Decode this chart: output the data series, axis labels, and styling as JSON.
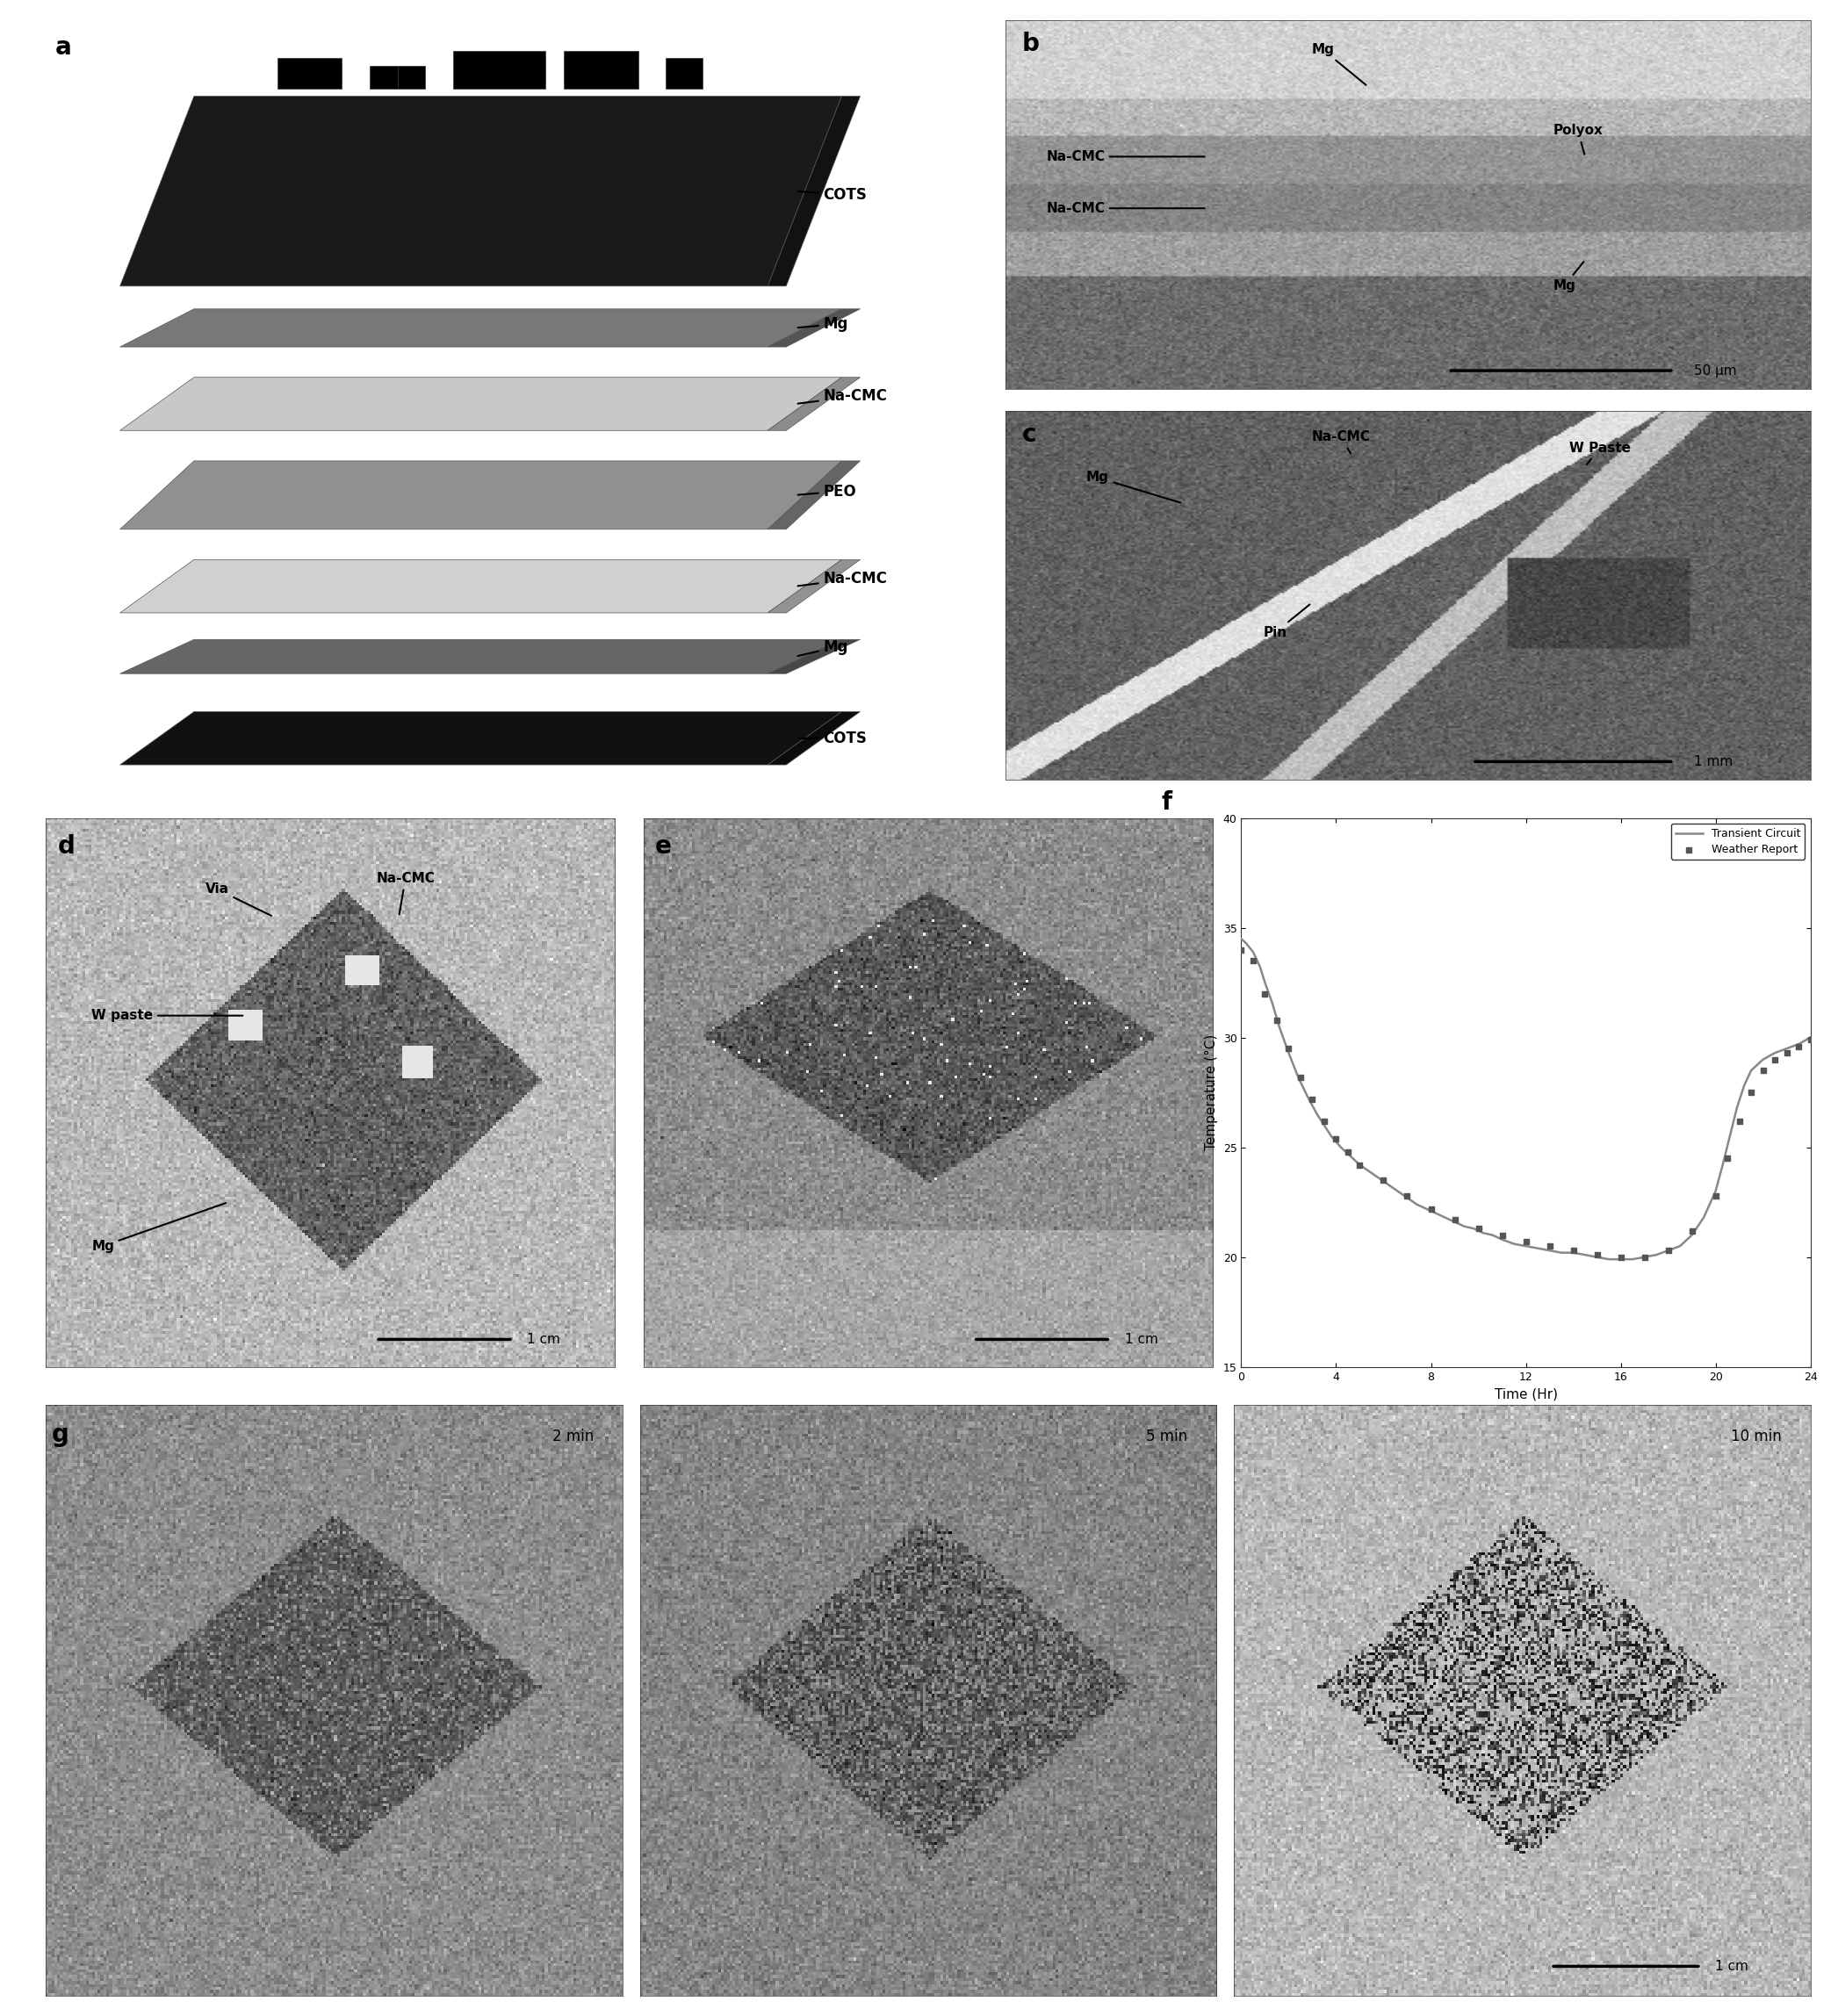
{
  "figure_bg": "#ffffff",
  "panel_labels": [
    "a",
    "b",
    "c",
    "d",
    "e",
    "f",
    "g"
  ],
  "panel_label_fontsize": 20,
  "panel_label_weight": "bold",
  "panel_f": {
    "xlabel": "Time (Hr)",
    "ylabel": "Temperature (°C)",
    "xlim": [
      0,
      24
    ],
    "ylim": [
      15,
      40
    ],
    "xticks": [
      0,
      4,
      8,
      12,
      16,
      20,
      24
    ],
    "yticks": [
      15,
      20,
      25,
      30,
      35,
      40
    ],
    "legend_line": "Transient Circuit",
    "legend_scatter": "Weather Report",
    "bg": "#ffffff",
    "transient_x": [
      0.0,
      0.2,
      0.5,
      0.8,
      1.0,
      1.3,
      1.6,
      2.0,
      2.4,
      2.8,
      3.2,
      3.5,
      3.8,
      4.2,
      4.6,
      5.0,
      5.4,
      5.8,
      6.2,
      6.6,
      7.0,
      7.4,
      7.8,
      8.2,
      8.6,
      9.0,
      9.4,
      9.8,
      10.2,
      10.6,
      11.0,
      11.5,
      12.0,
      12.5,
      13.0,
      13.5,
      14.0,
      14.5,
      15.0,
      15.5,
      16.0,
      16.5,
      17.0,
      17.5,
      18.0,
      18.5,
      19.0,
      19.5,
      20.0,
      20.3,
      20.6,
      20.9,
      21.2,
      21.5,
      22.0,
      22.5,
      23.0,
      23.5,
      24.0
    ],
    "transient_y": [
      34.5,
      34.3,
      33.9,
      33.2,
      32.5,
      31.6,
      30.5,
      29.3,
      28.2,
      27.3,
      26.5,
      26.0,
      25.5,
      25.0,
      24.6,
      24.2,
      23.9,
      23.6,
      23.3,
      23.0,
      22.7,
      22.4,
      22.2,
      22.0,
      21.8,
      21.6,
      21.4,
      21.3,
      21.1,
      21.0,
      20.8,
      20.6,
      20.5,
      20.4,
      20.3,
      20.2,
      20.2,
      20.1,
      20.0,
      19.9,
      19.9,
      19.9,
      20.0,
      20.1,
      20.3,
      20.5,
      21.0,
      21.8,
      23.0,
      24.2,
      25.5,
      26.8,
      27.8,
      28.5,
      29.0,
      29.3,
      29.5,
      29.7,
      30.0
    ],
    "weather_x": [
      0.0,
      0.5,
      1.0,
      1.5,
      2.0,
      2.5,
      3.0,
      3.5,
      4.0,
      4.5,
      5.0,
      6.0,
      7.0,
      8.0,
      9.0,
      10.0,
      11.0,
      12.0,
      13.0,
      14.0,
      15.0,
      16.0,
      17.0,
      18.0,
      19.0,
      20.0,
      20.5,
      21.0,
      21.5,
      22.0,
      22.5,
      23.0,
      23.5,
      24.0
    ],
    "weather_y": [
      34.0,
      33.5,
      32.0,
      30.8,
      29.5,
      28.2,
      27.2,
      26.2,
      25.4,
      24.8,
      24.2,
      23.5,
      22.8,
      22.2,
      21.7,
      21.3,
      21.0,
      20.7,
      20.5,
      20.3,
      20.1,
      20.0,
      20.0,
      20.3,
      21.2,
      22.8,
      24.5,
      26.2,
      27.5,
      28.5,
      29.0,
      29.3,
      29.6,
      29.9
    ]
  }
}
